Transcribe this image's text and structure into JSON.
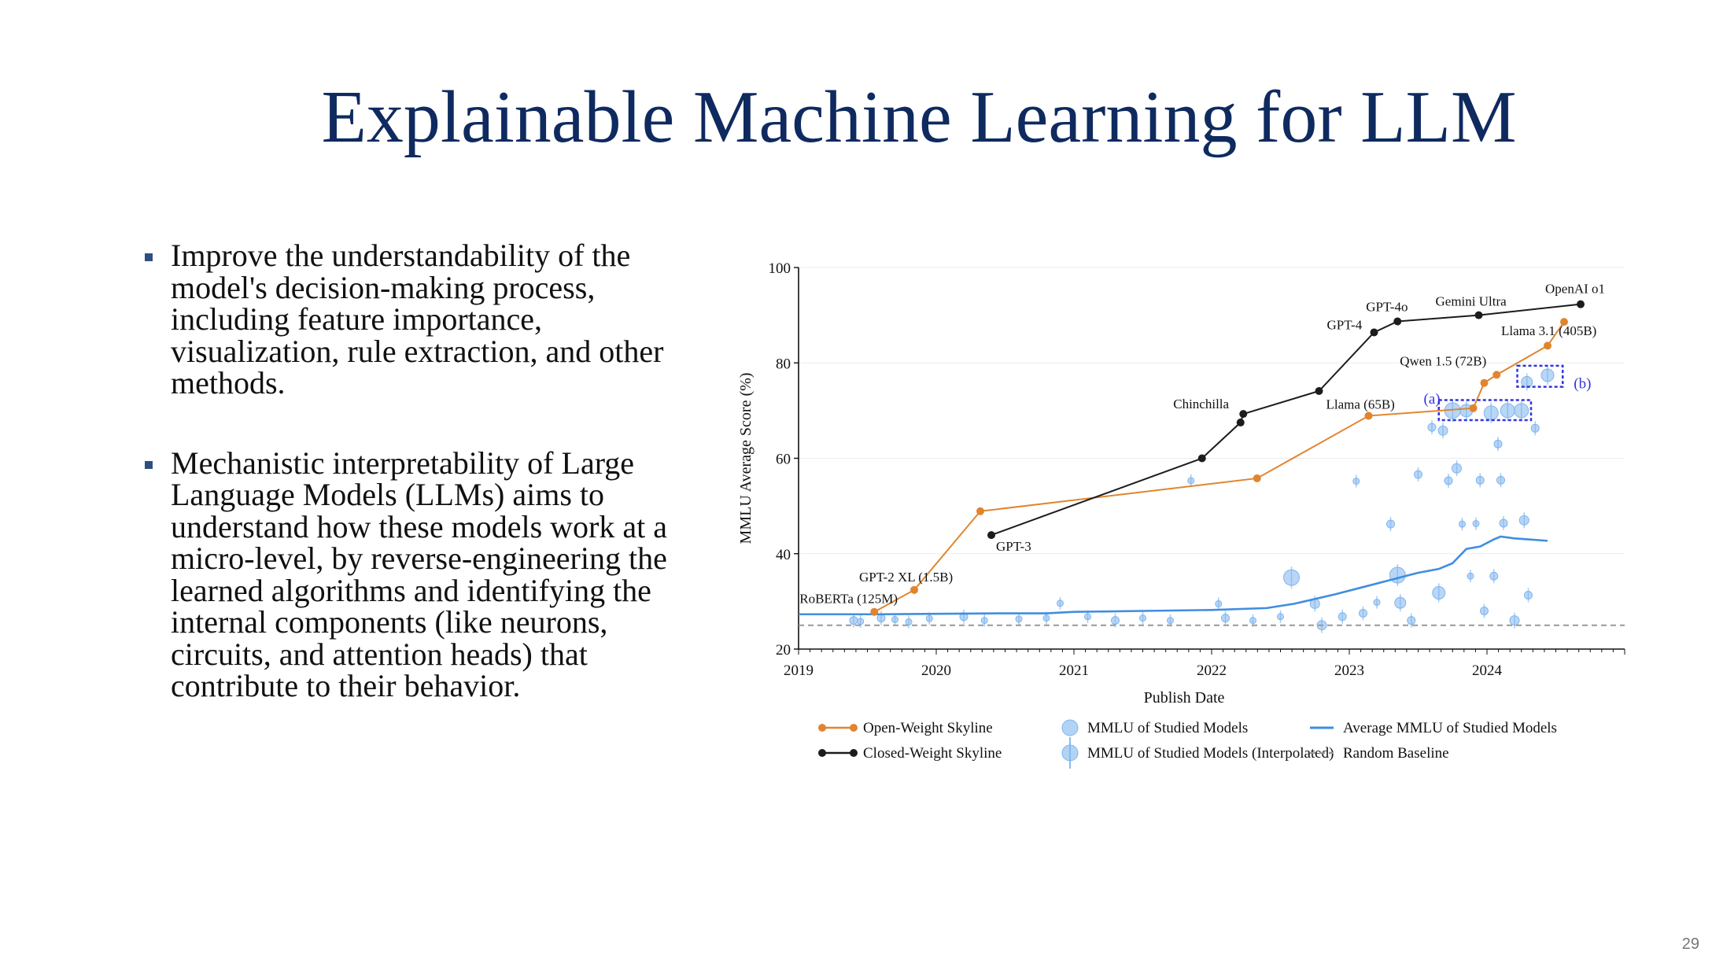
{
  "slide": {
    "title": "Explainable Machine Learning for LLM",
    "page_number": "29",
    "bullets": [
      {
        "text": "Improve the understandability of the model's decision-making process, including feature importance, visualization, rule extraction, and other methods."
      },
      {
        "text": "Mechanistic interpretability of Large Language Models (LLMs) aims to understand how these models work at a micro-level, by reverse-engineering the learned algorithms and identifying the internal components (like neurons, circuits, and attention heads) that contribute to their behavior."
      }
    ]
  },
  "colors": {
    "open": "#e0852f",
    "closed": "#1c1c1c",
    "studied": "#7fb5ee",
    "average": "#3f8ee0",
    "baseline": "#999999",
    "box": "#3333dd",
    "title": "#0e2a5f"
  },
  "chart_data": {
    "type": "line",
    "xlabel": "Publish Date",
    "ylabel": "MMLU Average Score (%)",
    "xlim": [
      2019.0,
      2025.0
    ],
    "ylim": [
      20,
      100
    ],
    "x_ticks": [
      {
        "value": 2019,
        "label": "2019"
      },
      {
        "value": 2020,
        "label": "2020"
      },
      {
        "value": 2021,
        "label": "2021"
      },
      {
        "value": 2022,
        "label": "2022"
      },
      {
        "value": 2023,
        "label": "2023"
      },
      {
        "value": 2024,
        "label": "2024"
      }
    ],
    "y_ticks": [
      {
        "value": 20,
        "label": "20"
      },
      {
        "value": 40,
        "label": "40"
      },
      {
        "value": 60,
        "label": "60"
      },
      {
        "value": 80,
        "label": "80"
      },
      {
        "value": 100,
        "label": "100"
      }
    ],
    "grid": true,
    "legend_position": "bottom",
    "legend": [
      {
        "label": "Open-Weight Skyline",
        "kind": "open"
      },
      {
        "label": "Closed-Weight Skyline",
        "kind": "closed"
      },
      {
        "label": "MMLU of Studied Models",
        "kind": "studied"
      },
      {
        "label": "MMLU of Studied Models  (Interpolated)",
        "kind": "interp"
      },
      {
        "label": "Average MMLU of Studied Models",
        "kind": "average"
      },
      {
        "label": "Random Baseline",
        "kind": "baseline"
      }
    ],
    "series": [
      {
        "name": "Open-Weight Skyline",
        "points": [
          {
            "x": 2019.55,
            "y": 27.8,
            "label": "RoBERTa (125M)"
          },
          {
            "x": 2019.84,
            "y": 32.4,
            "label": "GPT-2 XL (1.5B)"
          },
          {
            "x": 2020.32,
            "y": 48.9
          },
          {
            "x": 2022.33,
            "y": 55.8
          },
          {
            "x": 2023.14,
            "y": 68.9,
            "label": "Llama (65B)"
          },
          {
            "x": 2023.9,
            "y": 70.5
          },
          {
            "x": 2023.98,
            "y": 75.8
          },
          {
            "x": 2024.07,
            "y": 77.5,
            "label": "Qwen 1.5 (72B)"
          },
          {
            "x": 2024.44,
            "y": 83.6
          },
          {
            "x": 2024.56,
            "y": 88.6,
            "label": "Llama 3.1 (405B)"
          }
        ]
      },
      {
        "name": "Closed-Weight Skyline",
        "points": [
          {
            "x": 2020.4,
            "y": 43.9,
            "label": "GPT-3"
          },
          {
            "x": 2021.93,
            "y": 60.0
          },
          {
            "x": 2022.21,
            "y": 67.5
          },
          {
            "x": 2022.23,
            "y": 69.3,
            "label": "Chinchilla"
          },
          {
            "x": 2022.78,
            "y": 74.1
          },
          {
            "x": 2023.18,
            "y": 86.4,
            "label": "GPT-4"
          },
          {
            "x": 2023.35,
            "y": 88.7,
            "label": "GPT-4o"
          },
          {
            "x": 2023.94,
            "y": 90.0,
            "label": "Gemini Ultra"
          },
          {
            "x": 2024.68,
            "y": 92.3,
            "label": "OpenAI o1"
          }
        ]
      },
      {
        "name": "Average MMLU of Studied Models",
        "points": [
          {
            "x": 2019.0,
            "y": 27.3
          },
          {
            "x": 2019.6,
            "y": 27.3
          },
          {
            "x": 2020.5,
            "y": 27.5
          },
          {
            "x": 2020.8,
            "y": 27.5
          },
          {
            "x": 2021.0,
            "y": 27.8
          },
          {
            "x": 2021.5,
            "y": 28.0
          },
          {
            "x": 2022.0,
            "y": 28.2
          },
          {
            "x": 2022.4,
            "y": 28.6
          },
          {
            "x": 2022.6,
            "y": 29.5
          },
          {
            "x": 2022.9,
            "y": 31.5
          },
          {
            "x": 2023.1,
            "y": 33.0
          },
          {
            "x": 2023.3,
            "y": 34.5
          },
          {
            "x": 2023.5,
            "y": 36.0
          },
          {
            "x": 2023.65,
            "y": 36.8
          },
          {
            "x": 2023.75,
            "y": 38.0
          },
          {
            "x": 2023.85,
            "y": 41.0
          },
          {
            "x": 2023.95,
            "y": 41.5
          },
          {
            "x": 2024.05,
            "y": 43.0
          },
          {
            "x": 2024.1,
            "y": 43.6
          },
          {
            "x": 2024.2,
            "y": 43.2
          },
          {
            "x": 2024.3,
            "y": 43.0
          },
          {
            "x": 2024.44,
            "y": 42.7
          }
        ]
      },
      {
        "name": "Random Baseline",
        "points": [
          {
            "x": 2019.0,
            "y": 25.0
          },
          {
            "x": 2025.0,
            "y": 25.0
          }
        ]
      }
    ],
    "studied_models": [
      {
        "x": 2019.4,
        "y": 26.0,
        "r": 5
      },
      {
        "x": 2019.45,
        "y": 25.8,
        "r": 4
      },
      {
        "x": 2019.6,
        "y": 26.5,
        "r": 5
      },
      {
        "x": 2019.7,
        "y": 26.2,
        "r": 4
      },
      {
        "x": 2019.8,
        "y": 25.7,
        "r": 4
      },
      {
        "x": 2019.95,
        "y": 26.4,
        "r": 4
      },
      {
        "x": 2020.2,
        "y": 26.8,
        "r": 5
      },
      {
        "x": 2020.35,
        "y": 26.0,
        "r": 4
      },
      {
        "x": 2020.6,
        "y": 26.3,
        "r": 4
      },
      {
        "x": 2020.8,
        "y": 26.5,
        "r": 4
      },
      {
        "x": 2020.9,
        "y": 29.6,
        "r": 4
      },
      {
        "x": 2021.1,
        "y": 26.8,
        "r": 4
      },
      {
        "x": 2021.3,
        "y": 26.0,
        "r": 5
      },
      {
        "x": 2021.5,
        "y": 26.5,
        "r": 4
      },
      {
        "x": 2021.7,
        "y": 26.0,
        "r": 4
      },
      {
        "x": 2021.85,
        "y": 55.3,
        "r": 4
      },
      {
        "x": 2022.05,
        "y": 29.5,
        "r": 4
      },
      {
        "x": 2022.1,
        "y": 26.5,
        "r": 5
      },
      {
        "x": 2022.3,
        "y": 26.0,
        "r": 4
      },
      {
        "x": 2022.5,
        "y": 26.8,
        "r": 4
      },
      {
        "x": 2022.58,
        "y": 35.0,
        "r": 10
      },
      {
        "x": 2022.75,
        "y": 29.5,
        "r": 6
      },
      {
        "x": 2022.8,
        "y": 25.0,
        "r": 6
      },
      {
        "x": 2022.95,
        "y": 26.8,
        "r": 5
      },
      {
        "x": 2023.05,
        "y": 55.2,
        "r": 4
      },
      {
        "x": 2023.1,
        "y": 27.5,
        "r": 5
      },
      {
        "x": 2023.2,
        "y": 29.8,
        "r": 4
      },
      {
        "x": 2023.3,
        "y": 46.2,
        "r": 5
      },
      {
        "x": 2023.35,
        "y": 35.5,
        "r": 10
      },
      {
        "x": 2023.37,
        "y": 29.7,
        "r": 7
      },
      {
        "x": 2023.45,
        "y": 26.0,
        "r": 5
      },
      {
        "x": 2023.5,
        "y": 56.6,
        "r": 5
      },
      {
        "x": 2023.6,
        "y": 66.5,
        "r": 5
      },
      {
        "x": 2023.65,
        "y": 31.8,
        "r": 8
      },
      {
        "x": 2023.68,
        "y": 65.8,
        "r": 6
      },
      {
        "x": 2023.72,
        "y": 55.3,
        "r": 5
      },
      {
        "x": 2023.75,
        "y": 70.0,
        "r": 10
      },
      {
        "x": 2023.78,
        "y": 57.9,
        "r": 6
      },
      {
        "x": 2023.82,
        "y": 46.2,
        "r": 4
      },
      {
        "x": 2023.85,
        "y": 70.0,
        "r": 8
      },
      {
        "x": 2023.88,
        "y": 35.3,
        "r": 4
      },
      {
        "x": 2023.92,
        "y": 46.3,
        "r": 4
      },
      {
        "x": 2023.95,
        "y": 55.4,
        "r": 5
      },
      {
        "x": 2023.98,
        "y": 28.0,
        "r": 5
      },
      {
        "x": 2024.03,
        "y": 69.5,
        "r": 9
      },
      {
        "x": 2024.05,
        "y": 35.3,
        "r": 5
      },
      {
        "x": 2024.08,
        "y": 63.0,
        "r": 5
      },
      {
        "x": 2024.1,
        "y": 55.4,
        "r": 5
      },
      {
        "x": 2024.12,
        "y": 46.4,
        "r": 5
      },
      {
        "x": 2024.15,
        "y": 70.0,
        "r": 9
      },
      {
        "x": 2024.2,
        "y": 26.0,
        "r": 6
      },
      {
        "x": 2024.25,
        "y": 70.0,
        "r": 9
      },
      {
        "x": 2024.27,
        "y": 47.0,
        "r": 6
      },
      {
        "x": 2024.3,
        "y": 31.3,
        "r": 5
      },
      {
        "x": 2024.29,
        "y": 76.0,
        "r": 7
      },
      {
        "x": 2024.35,
        "y": 66.3,
        "r": 5
      },
      {
        "x": 2024.44,
        "y": 77.4,
        "r": 8
      }
    ],
    "annotations": [
      {
        "label": "(a)",
        "x": 2023.54,
        "y": 71.5
      },
      {
        "label": "(b)",
        "x": 2024.63,
        "y": 74.7
      }
    ],
    "highlight_boxes": [
      {
        "label": "(a)",
        "x0": 2023.65,
        "x1": 2024.32,
        "y0": 68.0,
        "y1": 72.2
      },
      {
        "label": "(b)",
        "x0": 2024.22,
        "x1": 2024.55,
        "y0": 75.0,
        "y1": 79.4
      }
    ]
  }
}
